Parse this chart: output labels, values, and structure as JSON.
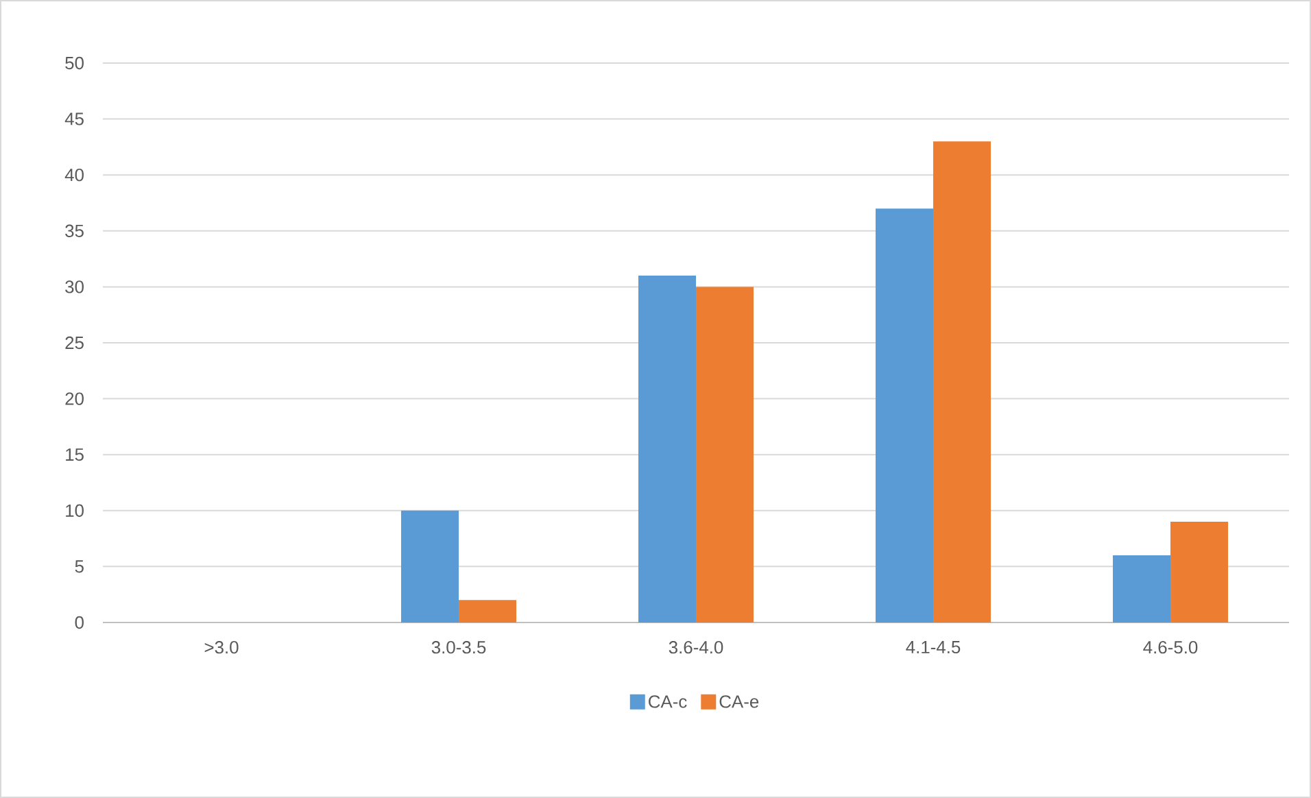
{
  "chart_data": {
    "type": "bar",
    "categories": [
      ">3.0",
      "3.0-3.5",
      "3.6-4.0",
      "4.1-4.5",
      "4.6-5.0"
    ],
    "series": [
      {
        "name": "CA-c",
        "color": "#5b9bd5",
        "values": [
          0,
          10,
          31,
          37,
          6
        ]
      },
      {
        "name": "CA-e",
        "color": "#ed7d31",
        "values": [
          0,
          2,
          30,
          43,
          9
        ]
      }
    ],
    "ylim": [
      0,
      50
    ],
    "yticks": [
      0,
      5,
      10,
      15,
      20,
      25,
      30,
      35,
      40,
      45,
      50
    ],
    "grid": "y",
    "legend": "bottom"
  }
}
